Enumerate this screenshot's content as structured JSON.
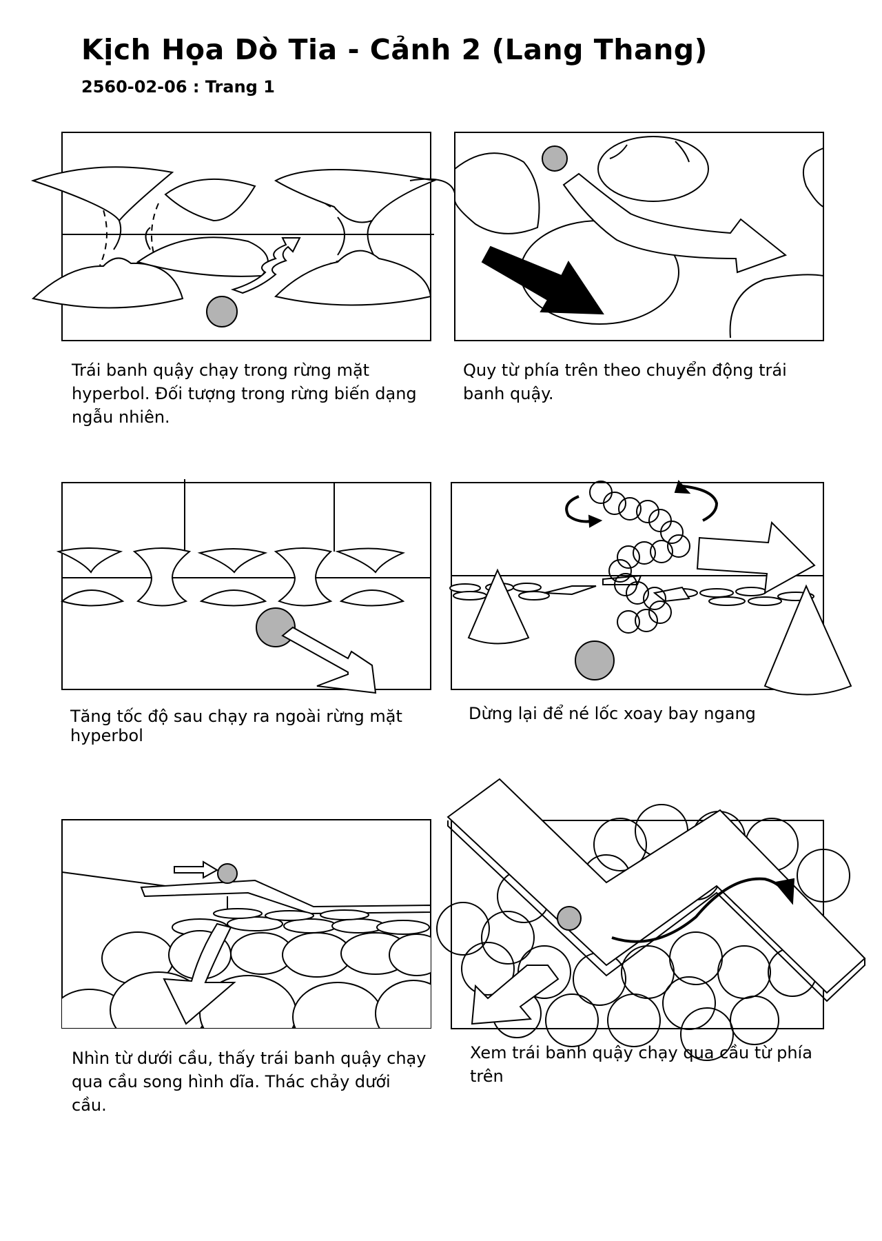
{
  "header": {
    "title": "Kịch Họa Dò Tia - Cảnh 2 (Lang Thang)",
    "subtitle": "2560-02-06 : Trang 1"
  },
  "panels": [
    {
      "caption": "Trái banh quậy chạy trong rừng mặt hyperbol. Đối tượng trong rừng biến dạng ngẫu nhiên."
    },
    {
      "caption": "Quy từ phía trên theo chuyển động trái banh quậy."
    },
    {
      "caption": "Tăng tốc độ sau chạy ra ngoài rừng mặt hyperbol"
    },
    {
      "caption": "Dừng lại để né lốc xoay bay ngang"
    },
    {
      "caption": "Nhìn từ dưới cầu, thấy trái banh quậy chạy qua cầu song hình dĩa. Thác chảy dưới cầu."
    },
    {
      "caption": "Xem trái banh quậy chạy qua cầu từ phía trên"
    }
  ],
  "colors": {
    "ball": "#b3b3b3",
    "ink": "#000000",
    "paper": "#ffffff"
  }
}
